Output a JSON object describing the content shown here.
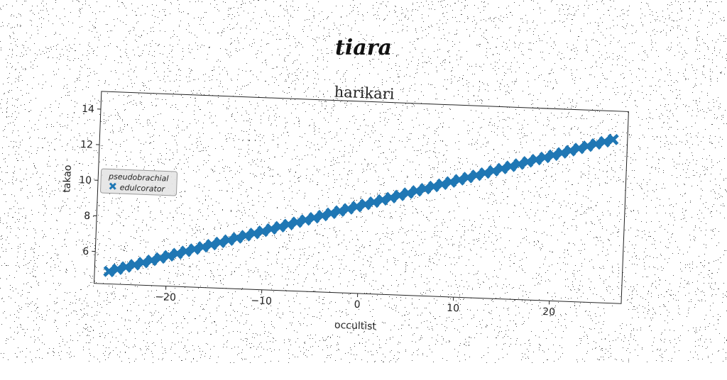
{
  "figure": {
    "suptitle": "tiara"
  },
  "chart_data": {
    "type": "line",
    "title": "harikari",
    "xlabel": "occultist",
    "ylabel": "takao",
    "xlim": [
      -27.5,
      27.5
    ],
    "ylim": [
      4.2,
      15.0
    ],
    "xticks": [
      -20,
      -10,
      0,
      10,
      20
    ],
    "xtick_labels": [
      "−20",
      "−10",
      "0",
      "10",
      "20"
    ],
    "yticks": [
      6,
      8,
      10,
      12,
      14
    ],
    "ytick_labels": [
      "6",
      "8",
      "10",
      "12",
      "14"
    ],
    "grid": false,
    "legend": {
      "title": "pseudobrachial",
      "placement": "center-left"
    },
    "series": [
      {
        "name": "edulcorator",
        "color": "#1f77b4",
        "marker": "x-filled",
        "linewidth": 7,
        "x_start": -26,
        "x_end": 26,
        "y_start": 4.9,
        "y_end": 13.4,
        "n_points": 60
      }
    ]
  }
}
